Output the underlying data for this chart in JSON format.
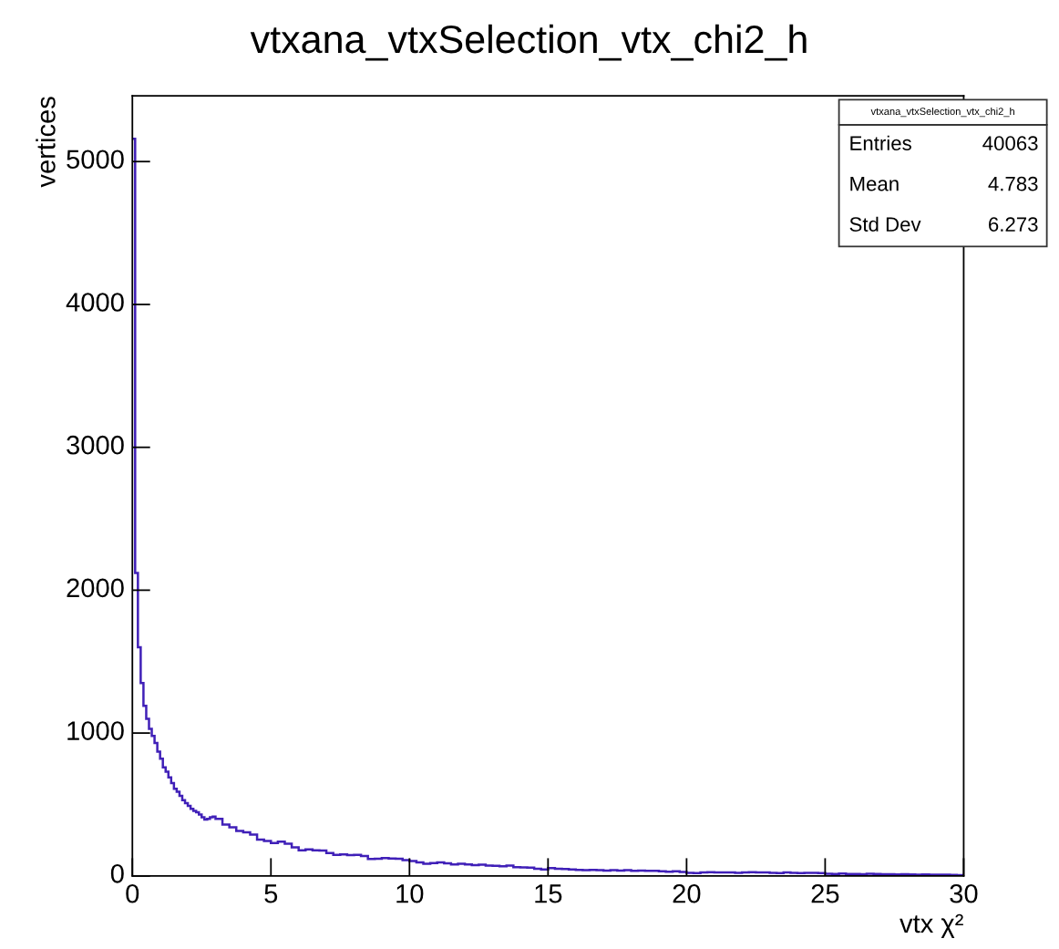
{
  "chart_data": {
    "type": "histogram",
    "title": "vtxana_vtxSelection_vtx_chi2_h",
    "xlabel": "vtx χ²",
    "ylabel": "vertices",
    "color": "#4020b8",
    "grid": false,
    "legend": false,
    "marker": "none",
    "xlim": [
      0,
      30
    ],
    "xticks": [
      0,
      5,
      10,
      15,
      20,
      25,
      30
    ],
    "ylim": [
      0,
      5460
    ],
    "yticks": [
      0,
      1000,
      2000,
      3000,
      4000,
      5000
    ],
    "annotations": [
      "vtxana_vtxSelection_vtx_chi2_h",
      "Entries",
      "40063",
      "Mean",
      "4.783",
      "Std Dev",
      "6.273"
    ],
    "bins": [
      0,
      0.1,
      0.2,
      0.3,
      0.4,
      0.5,
      0.6,
      0.7,
      0.8,
      0.9,
      1.0,
      1.1,
      1.2,
      1.3,
      1.4,
      1.5,
      1.6,
      1.7,
      1.8,
      1.9,
      2.0,
      2.1,
      2.2,
      2.3,
      2.4,
      2.5,
      2.6,
      2.7,
      2.8,
      2.9,
      3.0,
      3.25,
      3.5,
      3.75,
      4.0,
      4.25,
      4.5,
      4.75,
      5.0,
      5.25,
      5.5,
      5.75,
      6.0,
      6.25,
      6.5,
      6.75,
      7.0,
      7.25,
      7.5,
      7.75,
      8.0,
      8.25,
      8.5,
      8.75,
      9.0,
      9.25,
      9.5,
      9.75,
      10.0,
      10.25,
      10.5,
      10.75,
      11.0,
      11.25,
      11.5,
      11.75,
      12.0,
      12.25,
      12.5,
      12.75,
      13.0,
      13.25,
      13.5,
      13.75,
      14.0,
      14.25,
      14.5,
      14.75,
      15.0,
      15.25,
      15.5,
      15.75,
      16.0,
      16.25,
      16.5,
      16.75,
      17.0,
      17.25,
      17.5,
      17.75,
      18.0,
      18.25,
      18.5,
      18.75,
      19.0,
      19.25,
      19.5,
      19.75,
      20.0,
      20.25,
      20.5,
      20.75,
      21.0,
      21.25,
      21.5,
      21.75,
      22.0,
      22.25,
      22.5,
      22.75,
      23.0,
      23.25,
      23.5,
      23.75,
      24.0,
      24.25,
      24.5,
      24.75,
      25.0,
      25.25,
      25.5,
      25.75,
      26.0,
      26.25,
      26.5,
      26.75,
      27.0,
      27.25,
      27.5,
      27.75,
      28.0,
      28.25,
      28.5,
      28.75,
      29.0,
      29.25,
      29.5,
      29.75,
      30.0
    ],
    "values": [
      5160,
      2120,
      1600,
      1350,
      1190,
      1100,
      1030,
      980,
      930,
      870,
      820,
      760,
      730,
      690,
      650,
      610,
      590,
      560,
      530,
      510,
      490,
      470,
      455,
      445,
      430,
      410,
      395,
      400,
      410,
      415,
      400,
      360,
      340,
      315,
      305,
      290,
      255,
      245,
      230,
      240,
      225,
      200,
      180,
      185,
      180,
      178,
      160,
      148,
      150,
      145,
      148,
      140,
      118,
      120,
      125,
      122,
      120,
      110,
      105,
      95,
      85,
      90,
      95,
      88,
      80,
      85,
      80,
      75,
      78,
      72,
      70,
      68,
      72,
      62,
      60,
      58,
      50,
      45,
      55,
      50,
      48,
      45,
      42,
      40,
      42,
      40,
      38,
      40,
      38,
      40,
      36,
      38,
      35,
      35,
      32,
      30,
      32,
      28,
      22,
      20,
      25,
      26,
      25,
      24,
      25,
      22,
      24,
      26,
      25,
      25,
      22,
      20,
      24,
      22,
      20,
      22,
      22,
      20,
      15,
      14,
      16,
      14,
      14,
      12,
      15,
      14,
      12,
      12,
      10,
      12,
      10,
      9,
      10,
      8,
      9,
      8,
      7,
      6
    ]
  }
}
